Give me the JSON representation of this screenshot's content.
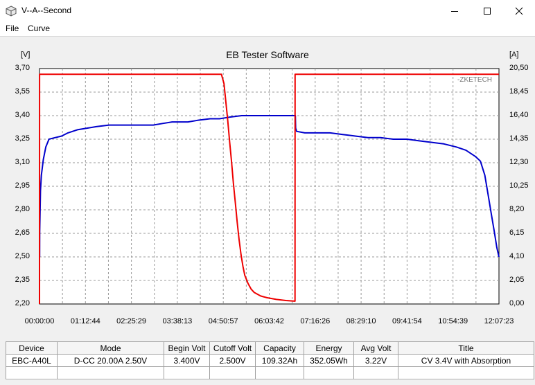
{
  "window": {
    "title": "V--A--Second",
    "minimize_icon": "minimize-icon",
    "maximize_icon": "maximize-icon",
    "close_icon": "close-icon"
  },
  "menu": {
    "items": [
      "File",
      "Curve"
    ]
  },
  "chart": {
    "title": "EB Tester Software",
    "left_unit": "[V]",
    "right_unit": "[A]",
    "watermark": "ZKETECH",
    "left_ticks": [
      "3,70",
      "3,55",
      "3,40",
      "3,25",
      "3,10",
      "2,95",
      "2,80",
      "2,65",
      "2,50",
      "2,35",
      "2,20"
    ],
    "right_ticks": [
      "20,50",
      "18,45",
      "16,40",
      "14,35",
      "12,30",
      "10,25",
      "8,20",
      "6,15",
      "4,10",
      "2,05",
      "0,00"
    ],
    "x_ticks": [
      "00:00:00",
      "01:12:44",
      "02:25:29",
      "03:38:13",
      "04:50:57",
      "06:03:42",
      "07:16:26",
      "08:29:10",
      "09:41:54",
      "10:54:39",
      "12:07:23"
    ]
  },
  "chart_data": {
    "type": "line",
    "title": "EB Tester Software",
    "xlabel": "",
    "ylabel": "[V]",
    "y2label": "[A]",
    "x_unit": "hh:mm:ss",
    "ylim": [
      2.2,
      3.7
    ],
    "y2lim": [
      0.0,
      20.5
    ],
    "xlim": [
      "00:00:00",
      "12:07:23"
    ],
    "grid": true,
    "series": [
      {
        "name": "",
        "axis": "left",
        "color": "#0000cc",
        "points": [
          [
            "00:00:10",
            2.5
          ],
          [
            "00:00:20",
            2.66
          ],
          [
            "00:01:30",
            2.92
          ],
          [
            "00:03:00",
            3.02
          ],
          [
            "00:06:00",
            3.12
          ],
          [
            "00:10:00",
            3.2
          ],
          [
            "00:15:00",
            3.25
          ],
          [
            "00:25:00",
            3.26
          ],
          [
            "00:35:00",
            3.27
          ],
          [
            "00:45:00",
            3.29
          ],
          [
            "01:00:00",
            3.31
          ],
          [
            "01:15:00",
            3.32
          ],
          [
            "01:30:00",
            3.33
          ],
          [
            "01:50:00",
            3.34
          ],
          [
            "02:10:00",
            3.34
          ],
          [
            "02:40:00",
            3.34
          ],
          [
            "03:00:00",
            3.34
          ],
          [
            "03:15:00",
            3.35
          ],
          [
            "03:30:00",
            3.36
          ],
          [
            "03:55:00",
            3.36
          ],
          [
            "04:10:00",
            3.37
          ],
          [
            "04:30:00",
            3.38
          ],
          [
            "04:45:00",
            3.38
          ],
          [
            "05:00:00",
            3.39
          ],
          [
            "05:20:00",
            3.4
          ],
          [
            "05:40:00",
            3.4
          ],
          [
            "06:00:00",
            3.4
          ],
          [
            "06:25:00",
            3.4
          ],
          [
            "06:45:00",
            3.4
          ],
          [
            "06:45:30",
            3.32
          ],
          [
            "06:47:00",
            3.3
          ],
          [
            "07:00:00",
            3.29
          ],
          [
            "07:20:00",
            3.29
          ],
          [
            "07:40:00",
            3.29
          ],
          [
            "08:00:00",
            3.28
          ],
          [
            "08:20:00",
            3.27
          ],
          [
            "08:40:00",
            3.26
          ],
          [
            "09:00:00",
            3.26
          ],
          [
            "09:20:00",
            3.25
          ],
          [
            "09:41:54",
            3.25
          ],
          [
            "10:00:00",
            3.24
          ],
          [
            "10:20:00",
            3.23
          ],
          [
            "10:40:00",
            3.22
          ],
          [
            "11:00:00",
            3.2
          ],
          [
            "11:15:00",
            3.18
          ],
          [
            "11:30:00",
            3.14
          ],
          [
            "11:38:00",
            3.11
          ],
          [
            "11:45:00",
            3.02
          ],
          [
            "11:50:00",
            2.9
          ],
          [
            "11:55:00",
            2.78
          ],
          [
            "12:00:00",
            2.66
          ],
          [
            "12:04:00",
            2.56
          ],
          [
            "12:07:23",
            2.5
          ]
        ]
      },
      {
        "name": "",
        "axis": "right",
        "color": "#ee0000",
        "points": [
          [
            "00:00:00",
            0.0
          ],
          [
            "00:00:05",
            20.0
          ],
          [
            "01:00:00",
            20.0
          ],
          [
            "02:30:00",
            20.0
          ],
          [
            "04:00:00",
            20.0
          ],
          [
            "04:48:00",
            20.0
          ],
          [
            "04:52:00",
            19.2
          ],
          [
            "04:55:00",
            17.6
          ],
          [
            "04:58:00",
            16.0
          ],
          [
            "05:01:00",
            14.1
          ],
          [
            "05:04:00",
            12.4
          ],
          [
            "05:07:00",
            10.5
          ],
          [
            "05:10:00",
            8.8
          ],
          [
            "05:13:00",
            7.1
          ],
          [
            "05:16:00",
            5.6
          ],
          [
            "05:19:00",
            4.3
          ],
          [
            "05:22:00",
            3.3
          ],
          [
            "05:25:00",
            2.5
          ],
          [
            "05:30:00",
            1.8
          ],
          [
            "05:35:00",
            1.3
          ],
          [
            "05:40:00",
            1.0
          ],
          [
            "05:50:00",
            0.7
          ],
          [
            "06:00:00",
            0.55
          ],
          [
            "06:15:00",
            0.4
          ],
          [
            "06:30:00",
            0.3
          ],
          [
            "06:44:00",
            0.25
          ],
          [
            "06:44:30",
            0.25
          ],
          [
            "06:44:40",
            20.0
          ],
          [
            "07:30:00",
            20.0
          ],
          [
            "09:00:00",
            20.0
          ],
          [
            "10:30:00",
            20.0
          ],
          [
            "11:30:00",
            20.0
          ],
          [
            "12:07:23",
            20.0
          ]
        ]
      }
    ]
  },
  "table": {
    "headers": [
      "Device",
      "Mode",
      "Begin Volt",
      "Cutoff Volt",
      "Capacity",
      "Energy",
      "Avg Volt",
      "Title"
    ],
    "rows": [
      [
        "EBC-A40L",
        "D-CC  20.00A  2.50V",
        "3.400V",
        "2.500V",
        "109.32Ah",
        "352.05Wh",
        "3.22V",
        "CV 3.4V with Absorption"
      ],
      [
        "",
        "",
        "",
        "",
        "",
        "",
        "",
        ""
      ]
    ]
  }
}
